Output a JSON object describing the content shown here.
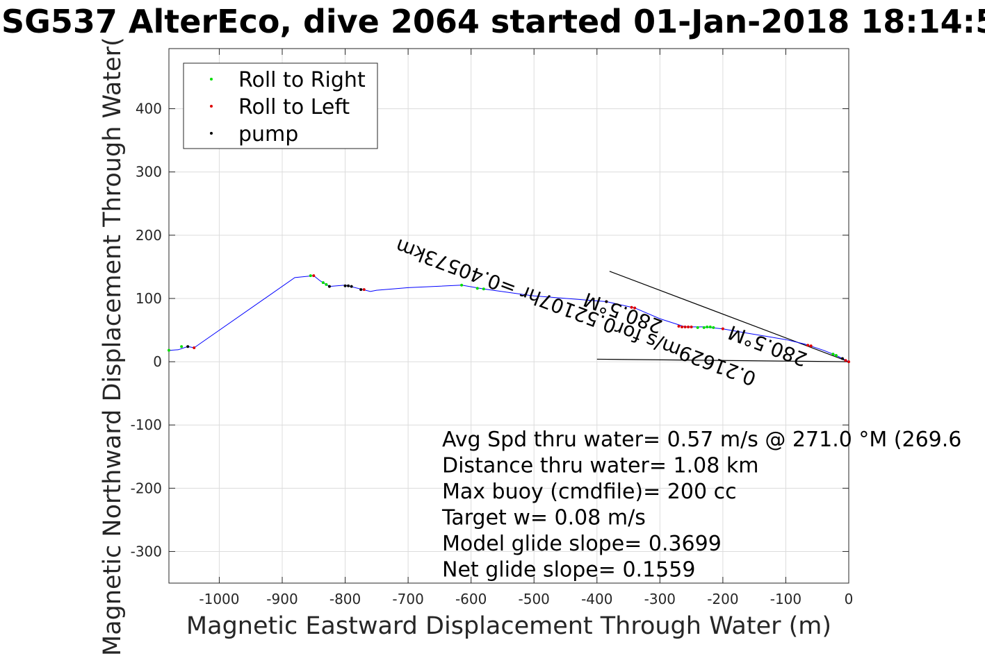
{
  "chart_data": {
    "type": "line",
    "title": "SG537 AlterEco, dive 2064 started 01-Jan-2018 18:14:5",
    "xlabel": "Magnetic Eastward Displacement Through Water (m)",
    "ylabel": "Magnetic Northward Displacement Through Water(",
    "xlim": [
      -1080,
      0
    ],
    "ylim": [
      -350,
      495
    ],
    "xticks": [
      -1000,
      -900,
      -800,
      -700,
      -600,
      -500,
      -400,
      -300,
      -200,
      -100,
      0
    ],
    "yticks": [
      -300,
      -200,
      -100,
      0,
      100,
      200,
      300,
      400
    ],
    "grid": true,
    "legend_position": "top-left",
    "series": [
      {
        "name": "track",
        "color": "#0000ff",
        "x": [
          0,
          -20,
          -40,
          -70,
          -100,
          -130,
          -160,
          -200,
          -230,
          -260,
          -300,
          -340,
          -385,
          -500,
          -580,
          -615,
          -700,
          -750,
          -760,
          -800,
          -825,
          -830,
          -840,
          -850,
          -880,
          -1040,
          -1050,
          -1065,
          -1080
        ],
        "y": [
          0,
          10,
          18,
          28,
          35,
          40,
          45,
          52,
          55,
          55,
          68,
          85,
          95,
          104,
          115,
          121,
          117,
          113,
          111,
          121,
          119,
          122,
          128,
          136,
          133,
          22,
          24,
          19,
          18
        ]
      },
      {
        "name": "Roll to Right",
        "color": "#00dd00",
        "x": [
          -20,
          -25,
          -215,
          -220,
          -225,
          -230,
          -240,
          -580,
          -590,
          -615,
          -830,
          -835,
          -855,
          -1060,
          -1080
        ],
        "y": [
          10,
          12,
          54,
          55,
          55,
          54,
          54,
          115,
          116,
          121,
          122,
          125,
          136,
          24,
          18
        ]
      },
      {
        "name": "Roll to Left",
        "color": "#dd0000",
        "x": [
          0,
          -5,
          -60,
          -65,
          -200,
          -250,
          -255,
          -260,
          -265,
          -270,
          -340,
          -345,
          -385,
          -770,
          -850,
          -1040
        ],
        "y": [
          0,
          2,
          25,
          26,
          52,
          55,
          55,
          55,
          55,
          56,
          85,
          86,
          95,
          114,
          136,
          22
        ]
      },
      {
        "name": "pump",
        "color": "#000000",
        "x": [
          -10,
          -385,
          -775,
          -790,
          -795,
          -800,
          -825,
          -1050
        ],
        "y": [
          5,
          95,
          114,
          119,
          120,
          120,
          119,
          24
        ]
      }
    ],
    "reference_lines": [
      {
        "x": [
          0,
          -380
        ],
        "y": [
          0,
          143
        ]
      },
      {
        "x": [
          0,
          -400
        ],
        "y": [
          0,
          4
        ]
      }
    ],
    "annotations": [
      {
        "text": "0.21629m/s for0.52107hr =0.40573km",
        "x": -430,
        "y": 88,
        "rotate": 200.6
      },
      {
        "text": "280.5°M",
        "x": -355,
        "y": 87,
        "rotate": 200.6
      },
      {
        "text": "280.5°M",
        "x": -125,
        "y": 35,
        "rotate": 200.6
      }
    ],
    "legend": [
      {
        "label": "Roll to Right",
        "color": "#00dd00"
      },
      {
        "label": "Roll to Left",
        "color": "#dd0000"
      },
      {
        "label": "pump",
        "color": "#000000"
      }
    ],
    "info_lines": [
      "Avg Spd thru water=  0.57 m/s @ 271.0 °M (269.6",
      "Distance thru water=  1.08 km",
      "Max buoy (cmdfile)= 200 cc",
      "Target w= 0.08 m/s",
      "Model glide slope= 0.3699",
      "Net glide slope= 0.1559"
    ]
  }
}
